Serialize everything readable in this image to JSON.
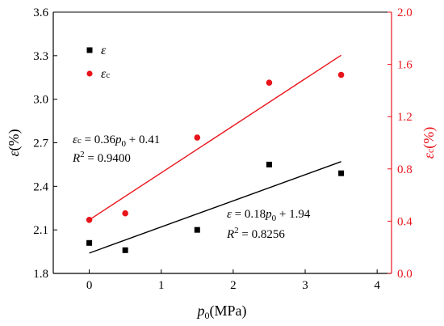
{
  "chart_data": {
    "type": "scatter",
    "x_axis": {
      "label_main": "p",
      "label_sub": "0",
      "label_unit": "(MPa)",
      "lim": [
        -0.5,
        4.2
      ],
      "ticks": [
        0,
        1,
        2,
        3,
        4
      ],
      "tick_labels": [
        "0",
        "1",
        "2",
        "3",
        "4"
      ]
    },
    "y_left": {
      "label_main": "ε",
      "label_unit": "(%)",
      "lim": [
        1.8,
        3.6
      ],
      "ticks": [
        1.8,
        2.1,
        2.4,
        2.7,
        3.0,
        3.3,
        3.6
      ],
      "tick_labels": [
        "1.8",
        "2.1",
        "2.4",
        "2.7",
        "3.0",
        "3.3",
        "3.6"
      ],
      "color": "#000000"
    },
    "y_right": {
      "label_main": "εc",
      "label_unit": "(%)",
      "lim": [
        0.0,
        2.0
      ],
      "ticks": [
        0.0,
        0.4,
        0.8,
        1.2,
        1.6,
        2.0
      ],
      "tick_labels": [
        "0.0",
        "0.4",
        "0.8",
        "1.2",
        "1.6",
        "2.0"
      ],
      "color": "#e8141b"
    },
    "series": [
      {
        "name": "ε",
        "axis": "left",
        "marker": "square",
        "color": "#000000",
        "x": [
          0,
          0.5,
          1.5,
          2.5,
          3.5
        ],
        "y": [
          2.01,
          1.96,
          2.1,
          2.55,
          2.49
        ],
        "fit": {
          "slope": 0.18,
          "intercept": 1.94
        }
      },
      {
        "name": "εc",
        "axis": "right",
        "marker": "circle",
        "color": "#e8141b",
        "x": [
          0,
          0.5,
          1.5,
          2.5,
          3.5
        ],
        "y": [
          0.41,
          0.46,
          1.04,
          1.46,
          1.52
        ],
        "fit": {
          "slope": 0.36,
          "intercept": 0.41
        }
      }
    ],
    "legend": {
      "placement": "top-left",
      "items": [
        {
          "label": "ε",
          "marker": "square",
          "color": "#000000"
        },
        {
          "label": "εc",
          "marker": "circle",
          "color": "#e8141b"
        }
      ]
    },
    "annotations": {
      "red_eq": {
        "pre": "εc = 0.36",
        "p": "p",
        "sub": "0",
        "post": " + 0.41"
      },
      "red_r2": {
        "r": "R",
        "sup": "2",
        "post": " = 0.9400"
      },
      "black_eq": {
        "pre": "ε = 0.18",
        "p": "p",
        "sub": "0",
        "post": " + 1.94"
      },
      "black_r2": {
        "r": "R",
        "sup": "2",
        "post": " = 0.8256"
      }
    },
    "grid": false
  }
}
